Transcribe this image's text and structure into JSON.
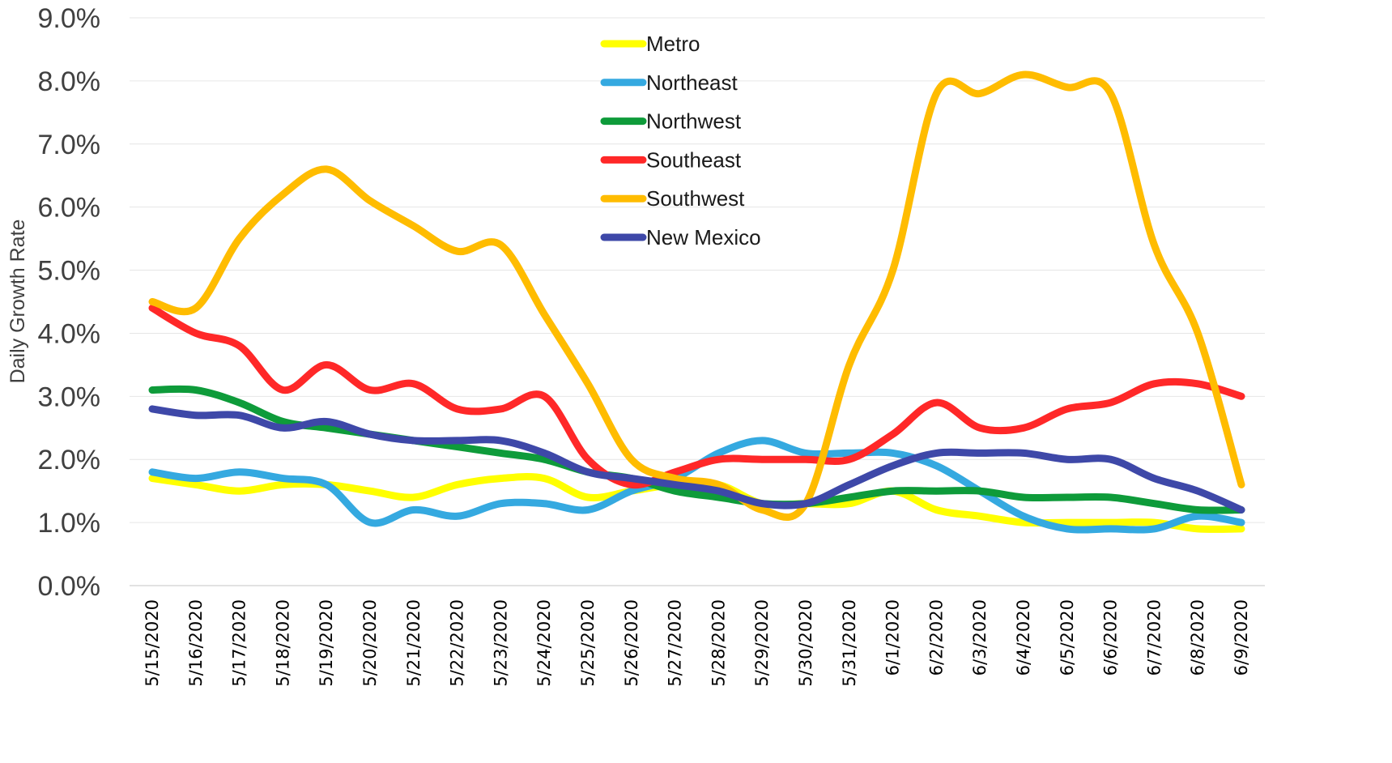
{
  "chart_data": {
    "type": "line",
    "title": "",
    "xlabel": "",
    "ylabel": "Daily Growth Rate",
    "ylim": [
      0,
      9
    ],
    "y_ticks": [
      "0.0%",
      "1.0%",
      "2.0%",
      "3.0%",
      "4.0%",
      "5.0%",
      "6.0%",
      "7.0%",
      "8.0%",
      "9.0%"
    ],
    "y_unit": "percent",
    "grid": "horizontal",
    "legend_position": "top-center",
    "categories": [
      "5/15/2020",
      "5/16/2020",
      "5/17/2020",
      "5/18/2020",
      "5/19/2020",
      "5/20/2020",
      "5/21/2020",
      "5/22/2020",
      "5/23/2020",
      "5/24/2020",
      "5/25/2020",
      "5/26/2020",
      "5/27/2020",
      "5/28/2020",
      "5/29/2020",
      "5/30/2020",
      "5/31/2020",
      "6/1/2020",
      "6/2/2020",
      "6/3/2020",
      "6/4/2020",
      "6/5/2020",
      "6/6/2020",
      "6/7/2020",
      "6/8/2020",
      "6/9/2020"
    ],
    "series": [
      {
        "name": "Metro",
        "color": "#FFFF00",
        "values": [
          1.7,
          1.6,
          1.5,
          1.6,
          1.6,
          1.5,
          1.4,
          1.6,
          1.7,
          1.7,
          1.4,
          1.5,
          1.6,
          1.6,
          1.3,
          1.3,
          1.3,
          1.5,
          1.2,
          1.1,
          1.0,
          1.0,
          1.0,
          1.0,
          0.9,
          0.9
        ]
      },
      {
        "name": "Northeast",
        "color": "#35A9E0",
        "values": [
          1.8,
          1.7,
          1.8,
          1.7,
          1.6,
          1.0,
          1.2,
          1.1,
          1.3,
          1.3,
          1.2,
          1.5,
          1.7,
          2.1,
          2.3,
          2.1,
          2.1,
          2.1,
          1.9,
          1.5,
          1.1,
          0.9,
          0.9,
          0.9,
          1.1,
          1.0
        ]
      },
      {
        "name": "Northwest",
        "color": "#0E9B3A",
        "values": [
          3.1,
          3.1,
          2.9,
          2.6,
          2.5,
          2.4,
          2.3,
          2.2,
          2.1,
          2.0,
          1.8,
          1.7,
          1.5,
          1.4,
          1.3,
          1.3,
          1.4,
          1.5,
          1.5,
          1.5,
          1.4,
          1.4,
          1.4,
          1.3,
          1.2,
          1.2
        ]
      },
      {
        "name": "Southeast",
        "color": "#FF2828",
        "values": [
          4.4,
          4.0,
          3.8,
          3.1,
          3.5,
          3.1,
          3.2,
          2.8,
          2.8,
          3.0,
          2.0,
          1.6,
          1.8,
          2.0,
          2.0,
          2.0,
          2.0,
          2.4,
          2.9,
          2.5,
          2.5,
          2.8,
          2.9,
          3.2,
          3.2,
          3.0
        ]
      },
      {
        "name": "Southwest",
        "color": "#FFBC00",
        "values": [
          4.5,
          4.4,
          5.5,
          6.2,
          6.6,
          6.1,
          5.7,
          5.3,
          5.4,
          4.3,
          3.2,
          2.0,
          1.7,
          1.6,
          1.2,
          1.3,
          3.5,
          5.0,
          7.8,
          7.8,
          8.1,
          7.9,
          7.8,
          5.4,
          4.0,
          1.6
        ]
      },
      {
        "name": "New Mexico",
        "color": "#3E48A8",
        "values": [
          2.8,
          2.7,
          2.7,
          2.5,
          2.6,
          2.4,
          2.3,
          2.3,
          2.3,
          2.1,
          1.8,
          1.7,
          1.6,
          1.5,
          1.3,
          1.3,
          1.6,
          1.9,
          2.1,
          2.1,
          2.1,
          2.0,
          2.0,
          1.7,
          1.5,
          1.2
        ]
      }
    ]
  }
}
